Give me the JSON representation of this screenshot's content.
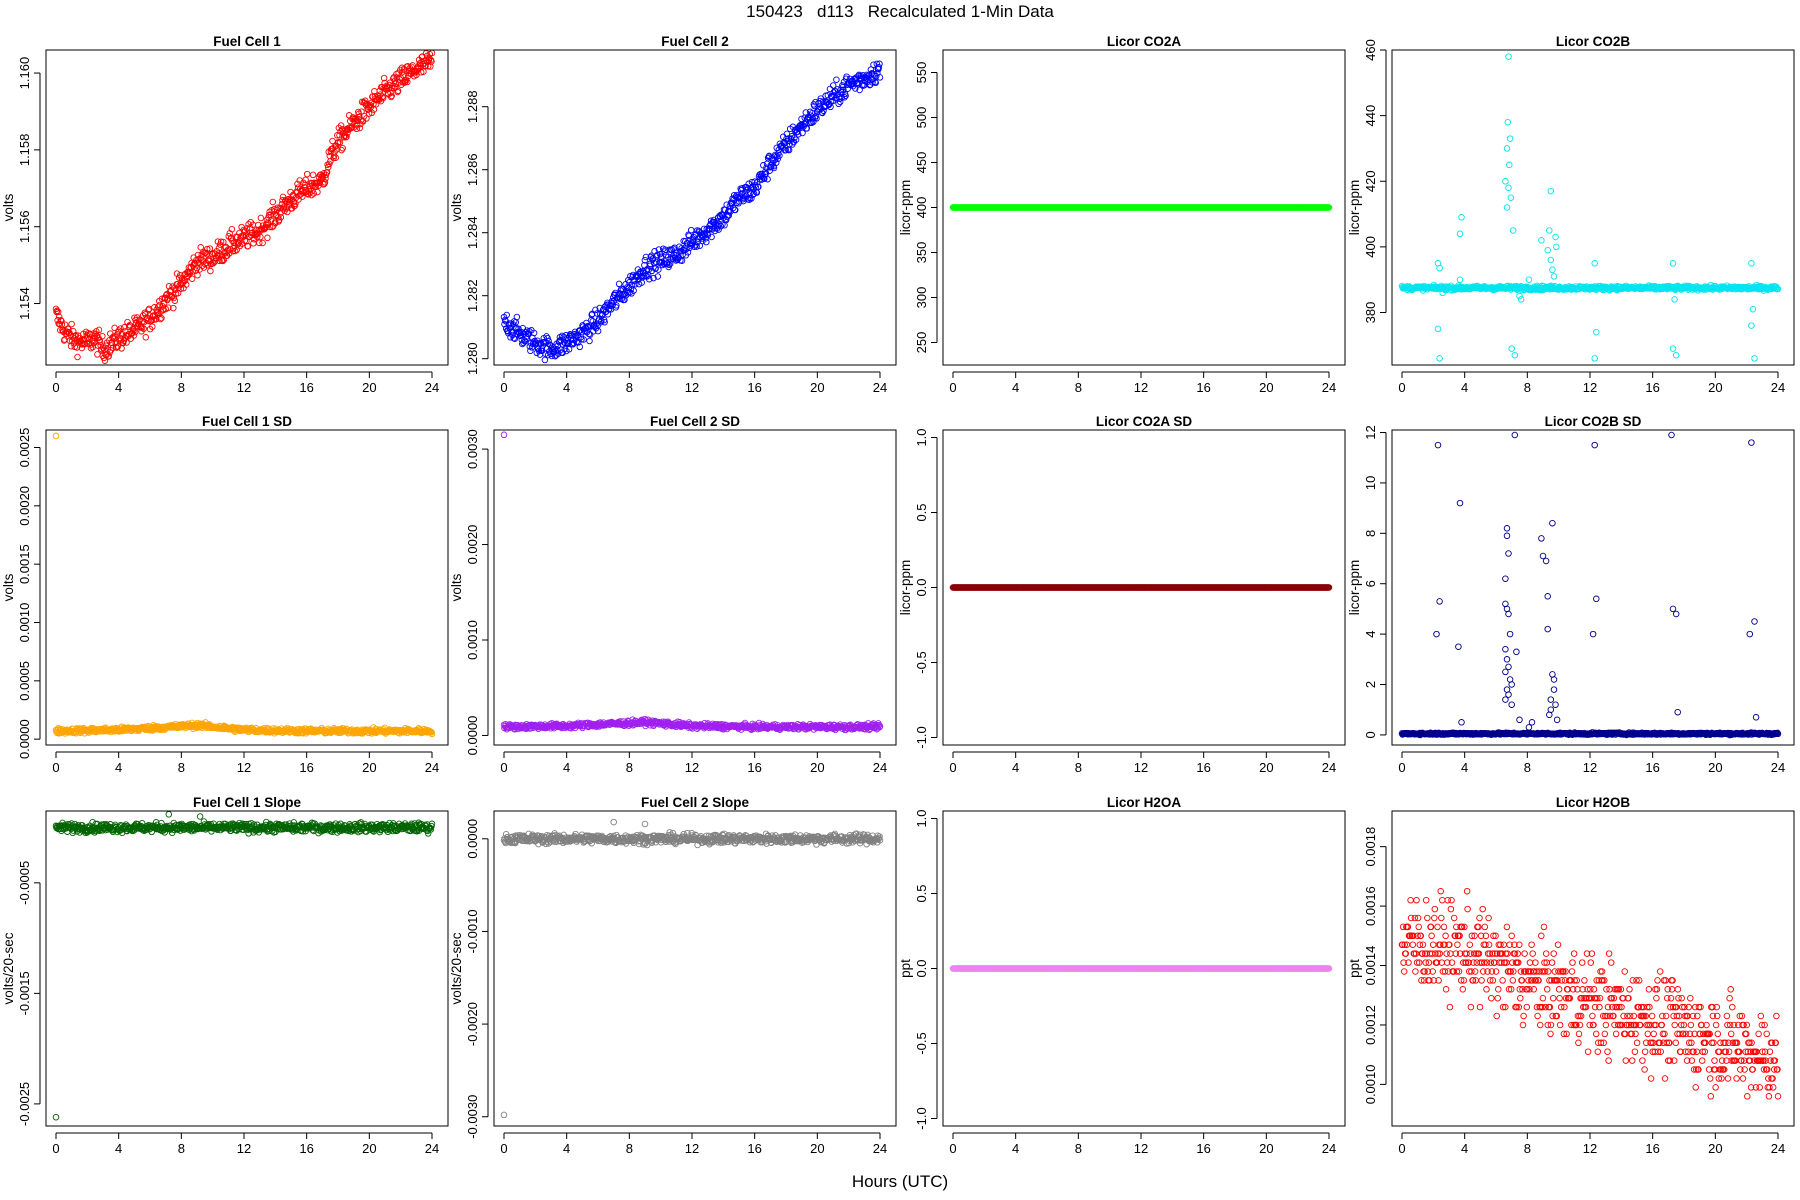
{
  "page": {
    "title": "150423   d113   Recalculated 1-Min Data",
    "x_caption": "Hours (UTC)"
  },
  "chart_data": [
    {
      "type": "scatter",
      "title": "Fuel Cell 1",
      "ylabel": "volts",
      "color": "#ff0000",
      "xlim": [
        0,
        24
      ],
      "xticks": [
        0,
        4,
        8,
        12,
        16,
        20,
        24
      ],
      "ylim": [
        1.1524,
        1.1606
      ],
      "yticks": [
        1.154,
        1.156,
        1.158,
        1.16
      ],
      "ytick_labels": [
        "1.154",
        "1.156",
        "1.158",
        "1.160"
      ],
      "series": [
        {
          "style": "line-noise",
          "x": [
            0,
            0.5,
            1,
            1.5,
            2,
            2.5,
            3,
            4,
            5,
            6,
            7,
            8,
            9,
            10,
            11,
            12,
            13,
            14,
            15,
            16,
            17,
            17.5,
            18,
            19,
            20,
            21,
            22,
            23,
            24
          ],
          "y": [
            1.1537,
            1.1533,
            1.1531,
            1.153,
            1.153,
            1.1531,
            1.1528,
            1.1531,
            1.1533,
            1.1536,
            1.1541,
            1.1545,
            1.1551,
            1.1552,
            1.1555,
            1.1557,
            1.1559,
            1.1563,
            1.1567,
            1.157,
            1.1572,
            1.1578,
            1.1582,
            1.1587,
            1.1591,
            1.1595,
            1.1598,
            1.1601,
            1.1603
          ],
          "noise": 0.00035
        }
      ]
    },
    {
      "type": "scatter",
      "title": "Fuel Cell 2",
      "ylabel": "volts",
      "color": "#0000ff",
      "xlim": [
        0,
        24
      ],
      "xticks": [
        0,
        4,
        8,
        12,
        16,
        20,
        24
      ],
      "ylim": [
        1.2798,
        1.2898
      ],
      "yticks": [
        1.28,
        1.282,
        1.284,
        1.286,
        1.288
      ],
      "ytick_labels": [
        "1.280",
        "1.282",
        "1.284",
        "1.286",
        "1.288"
      ],
      "series": [
        {
          "style": "line-noise",
          "x": [
            0,
            1,
            2,
            3,
            4,
            5,
            6,
            7,
            8,
            9,
            10,
            11,
            12,
            13,
            14,
            15,
            16,
            17,
            18,
            19,
            20,
            21,
            22,
            23,
            24
          ],
          "y": [
            1.2812,
            1.2808,
            1.2805,
            1.2803,
            1.2805,
            1.2808,
            1.2812,
            1.2818,
            1.2823,
            1.2829,
            1.2831,
            1.2833,
            1.2837,
            1.2841,
            1.2845,
            1.2851,
            1.2854,
            1.2862,
            1.2868,
            1.2874,
            1.2879,
            1.2883,
            1.2887,
            1.2889,
            1.2892
          ],
          "noise": 0.0004
        }
      ]
    },
    {
      "type": "scatter",
      "title": "Licor CO2A",
      "ylabel": "licor-ppm",
      "color": "#00ff00",
      "xlim": [
        0,
        24
      ],
      "xticks": [
        0,
        4,
        8,
        12,
        16,
        20,
        24
      ],
      "ylim": [
        225,
        575
      ],
      "yticks": [
        250,
        300,
        350,
        400,
        450,
        500,
        550
      ],
      "ytick_labels": [
        "250",
        "300",
        "350",
        "400",
        "450",
        "500",
        "550"
      ],
      "series": [
        {
          "style": "flat",
          "value": 400
        }
      ]
    },
    {
      "type": "scatter",
      "title": "Licor CO2B",
      "ylabel": "licor-ppm",
      "color": "#00e5ee",
      "xlim": [
        0,
        24
      ],
      "xticks": [
        0,
        4,
        8,
        12,
        16,
        20,
        24
      ],
      "ylim": [
        364,
        460
      ],
      "yticks": [
        380,
        400,
        420,
        440,
        460
      ],
      "ytick_labels": [
        "380",
        "400",
        "420",
        "440",
        "460"
      ],
      "series": [
        {
          "style": "base-noise",
          "value": 387.5,
          "noise": 0.6
        }
      ],
      "points": [
        [
          2.3,
          395
        ],
        [
          2.4,
          393.5
        ],
        [
          2.3,
          375
        ],
        [
          2.4,
          366
        ],
        [
          2.6,
          386
        ],
        [
          3.7,
          390
        ],
        [
          3.7,
          404
        ],
        [
          3.8,
          409
        ],
        [
          6.6,
          420
        ],
        [
          6.7,
          430
        ],
        [
          6.8,
          458
        ],
        [
          6.75,
          438
        ],
        [
          6.9,
          433
        ],
        [
          6.85,
          425
        ],
        [
          6.95,
          415
        ],
        [
          6.7,
          412
        ],
        [
          6.8,
          418
        ],
        [
          7.1,
          405
        ],
        [
          7.2,
          367
        ],
        [
          7.0,
          369
        ],
        [
          7.5,
          385
        ],
        [
          7.6,
          384
        ],
        [
          8.1,
          390
        ],
        [
          8.9,
          402
        ],
        [
          9.3,
          399
        ],
        [
          9.4,
          405
        ],
        [
          9.5,
          396
        ],
        [
          9.6,
          393
        ],
        [
          9.7,
          391
        ],
        [
          9.8,
          403
        ],
        [
          9.85,
          400
        ],
        [
          9.5,
          417
        ],
        [
          12.3,
          395
        ],
        [
          12.3,
          366
        ],
        [
          12.4,
          374
        ],
        [
          17.3,
          395
        ],
        [
          17.3,
          369
        ],
        [
          17.5,
          367
        ],
        [
          17.4,
          384
        ],
        [
          22.3,
          395
        ],
        [
          22.3,
          376
        ],
        [
          22.5,
          366
        ],
        [
          22.4,
          381
        ]
      ]
    },
    {
      "type": "scatter",
      "title": "Fuel Cell 1 SD",
      "ylabel": "volts",
      "color": "#ffa500",
      "xlim": [
        0,
        24
      ],
      "xticks": [
        0,
        4,
        8,
        12,
        16,
        20,
        24
      ],
      "ylim": [
        -5e-05,
        0.00265
      ],
      "yticks": [
        0,
        0.0005,
        0.001,
        0.0015,
        0.002,
        0.0025
      ],
      "ytick_labels": [
        "0.0000",
        "0.0005",
        "0.0010",
        "0.0015",
        "0.0020",
        "0.0025"
      ],
      "series": [
        {
          "style": "line-noise",
          "x": [
            0,
            4,
            8,
            9,
            12,
            16,
            20,
            24
          ],
          "y": [
            7e-05,
            8e-05,
            0.00011,
            0.00012,
            8e-05,
            7e-05,
            7e-05,
            7e-05
          ],
          "noise": 2.5e-05
        }
      ],
      "points": [
        [
          0,
          0.0026
        ]
      ]
    },
    {
      "type": "scatter",
      "title": "Fuel Cell 2 SD",
      "ylabel": "volts",
      "color": "#a020f0",
      "xlim": [
        0,
        24
      ],
      "xticks": [
        0,
        4,
        8,
        12,
        16,
        20,
        24
      ],
      "ylim": [
        -0.0001,
        0.0032
      ],
      "yticks": [
        0,
        0.001,
        0.002,
        0.003
      ],
      "ytick_labels": [
        "0.0000",
        "0.0010",
        "0.0020",
        "0.0030"
      ],
      "series": [
        {
          "style": "line-noise",
          "x": [
            0,
            4,
            8,
            9,
            12,
            16,
            20,
            24
          ],
          "y": [
            9e-05,
            0.0001,
            0.00013,
            0.00014,
            0.0001,
            9e-05,
            9e-05,
            9e-05
          ],
          "noise": 3e-05
        }
      ],
      "points": [
        [
          0,
          0.00315
        ]
      ]
    },
    {
      "type": "scatter",
      "title": "Licor CO2A SD",
      "ylabel": "licor-ppm",
      "color": "#8b0000",
      "xlim": [
        0,
        24
      ],
      "xticks": [
        0,
        4,
        8,
        12,
        16,
        20,
        24
      ],
      "ylim": [
        -1.05,
        1.05
      ],
      "yticks": [
        -1,
        -0.5,
        0,
        0.5,
        1
      ],
      "ytick_labels": [
        "-1.0",
        "-0.5",
        "0.0",
        "0.5",
        "1.0"
      ],
      "series": [
        {
          "style": "flat",
          "value": 0
        }
      ]
    },
    {
      "type": "scatter",
      "title": "Licor CO2B SD",
      "ylabel": "licor-ppm",
      "color": "#00008b",
      "xlim": [
        0,
        24
      ],
      "xticks": [
        0,
        4,
        8,
        12,
        16,
        20,
        24
      ],
      "ylim": [
        -0.4,
        12.1
      ],
      "yticks": [
        0,
        2,
        4,
        6,
        8,
        10,
        12
      ],
      "ytick_labels": [
        "0",
        "2",
        "4",
        "6",
        "8",
        "10",
        "12"
      ],
      "series": [
        {
          "style": "base-noise",
          "value": 0.05,
          "noise": 0.04
        }
      ],
      "points": [
        [
          2.3,
          11.5
        ],
        [
          2.2,
          4.0
        ],
        [
          2.4,
          5.3
        ],
        [
          3.6,
          3.5
        ],
        [
          3.7,
          9.2
        ],
        [
          3.8,
          0.5
        ],
        [
          6.6,
          5.2
        ],
        [
          6.7,
          8.2
        ],
        [
          6.7,
          7.9
        ],
        [
          6.8,
          7.2
        ],
        [
          6.6,
          6.2
        ],
        [
          6.7,
          5.0
        ],
        [
          6.8,
          4.8
        ],
        [
          6.9,
          4.0
        ],
        [
          6.6,
          3.4
        ],
        [
          6.7,
          3.0
        ],
        [
          6.8,
          2.7
        ],
        [
          6.6,
          2.5
        ],
        [
          6.9,
          2.2
        ],
        [
          6.7,
          1.8
        ],
        [
          6.8,
          1.6
        ],
        [
          6.6,
          1.4
        ],
        [
          7.0,
          1.2
        ],
        [
          7.0,
          2.0
        ],
        [
          7.2,
          11.9
        ],
        [
          7.3,
          3.3
        ],
        [
          7.5,
          0.6
        ],
        [
          8.1,
          0.3
        ],
        [
          8.3,
          0.5
        ],
        [
          8.9,
          7.8
        ],
        [
          9.0,
          7.1
        ],
        [
          9.2,
          6.9
        ],
        [
          9.3,
          5.5
        ],
        [
          9.3,
          4.2
        ],
        [
          9.4,
          0.8
        ],
        [
          9.5,
          1.4
        ],
        [
          9.6,
          8.4
        ],
        [
          9.6,
          2.4
        ],
        [
          9.7,
          1.8
        ],
        [
          9.8,
          1.2
        ],
        [
          9.5,
          1.0
        ],
        [
          9.9,
          0.6
        ],
        [
          9.7,
          2.2
        ],
        [
          12.2,
          4.0
        ],
        [
          12.3,
          11.5
        ],
        [
          12.4,
          5.4
        ],
        [
          17.2,
          11.9
        ],
        [
          17.3,
          5.0
        ],
        [
          17.5,
          4.8
        ],
        [
          17.6,
          0.9
        ],
        [
          22.2,
          4.0
        ],
        [
          22.3,
          11.6
        ],
        [
          22.5,
          4.5
        ],
        [
          22.6,
          0.7
        ]
      ]
    },
    {
      "type": "scatter",
      "title": "Fuel Cell 1 Slope",
      "ylabel": "volts/20-sec",
      "color": "#006400",
      "xlim": [
        0,
        24
      ],
      "xticks": [
        0,
        4,
        8,
        12,
        16,
        20,
        24
      ],
      "ylim": [
        -0.0027,
        0.00015
      ],
      "yticks": [
        -0.0025,
        -0.0015,
        -0.0005
      ],
      "ytick_labels": [
        "-0.0025",
        "-0.0015",
        "-0.0005"
      ],
      "series": [
        {
          "style": "base-noise",
          "value": 0.0,
          "noise": 4e-05
        }
      ],
      "points": [
        [
          0,
          -0.00262
        ],
        [
          7.2,
          0.00012
        ],
        [
          9.2,
          0.0001
        ]
      ]
    },
    {
      "type": "scatter",
      "title": "Fuel Cell 2 Slope",
      "ylabel": "volts/20-sec",
      "color": "#808080",
      "xlim": [
        0,
        24
      ],
      "xticks": [
        0,
        4,
        8,
        12,
        16,
        20,
        24
      ],
      "ylim": [
        -0.0031,
        0.0003
      ],
      "yticks": [
        -0.003,
        -0.002,
        -0.001,
        0
      ],
      "ytick_labels": [
        "-0.0030",
        "-0.0020",
        "-0.0010",
        "0.0000"
      ],
      "series": [
        {
          "style": "base-noise",
          "value": 0.0,
          "noise": 5e-05
        }
      ],
      "points": [
        [
          0,
          -0.00298
        ],
        [
          7.0,
          0.00018
        ],
        [
          9.0,
          0.00016
        ]
      ]
    },
    {
      "type": "scatter",
      "title": "Licor H2OA",
      "ylabel": "ppt",
      "color": "#ee82ee",
      "xlim": [
        0,
        24
      ],
      "xticks": [
        0,
        4,
        8,
        12,
        16,
        20,
        24
      ],
      "ylim": [
        -1.05,
        1.05
      ],
      "yticks": [
        -1,
        -0.5,
        0,
        0.5,
        1
      ],
      "ytick_labels": [
        "-1.0",
        "-0.5",
        "0.0",
        "0.5",
        "1.0"
      ],
      "series": [
        {
          "style": "flat",
          "value": 0
        }
      ]
    },
    {
      "type": "scatter",
      "title": "Licor H2OB",
      "ylabel": "ppt",
      "color": "#ff0000",
      "xlim": [
        0,
        24
      ],
      "xticks": [
        0,
        4,
        8,
        12,
        16,
        20,
        24
      ],
      "ylim": [
        0.00086,
        0.00192
      ],
      "yticks": [
        0.001,
        0.0012,
        0.0014,
        0.0016,
        0.0018
      ],
      "ytick_labels": [
        "0.0010",
        "0.0012",
        "0.0014",
        "0.0016",
        "0.0018"
      ],
      "series": [
        {
          "style": "quantized",
          "x": [
            0,
            4,
            8,
            12,
            16,
            20,
            24
          ],
          "y": [
            0.00148,
            0.00145,
            0.00135,
            0.00128,
            0.00121,
            0.00115,
            0.00108
          ],
          "noise": 0.00014,
          "step": 3e-05
        }
      ]
    }
  ]
}
